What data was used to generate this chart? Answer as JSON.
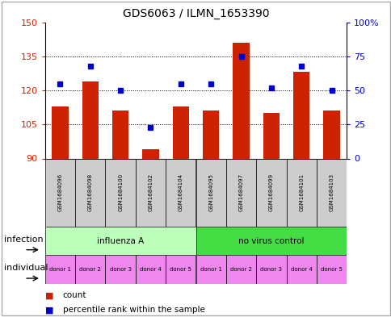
{
  "title": "GDS6063 / ILMN_1653390",
  "samples": [
    "GSM1684096",
    "GSM1684098",
    "GSM1684100",
    "GSM1684102",
    "GSM1684104",
    "GSM1684095",
    "GSM1684097",
    "GSM1684099",
    "GSM1684101",
    "GSM1684103"
  ],
  "counts": [
    113,
    124,
    111,
    94,
    113,
    111,
    141,
    110,
    128,
    111
  ],
  "percentiles": [
    55,
    68,
    50,
    23,
    55,
    55,
    75,
    52,
    68,
    50
  ],
  "ylim_left": [
    90,
    150
  ],
  "ylim_right": [
    0,
    100
  ],
  "yticks_left": [
    90,
    105,
    120,
    135,
    150
  ],
  "yticks_right": [
    0,
    25,
    50,
    75,
    100
  ],
  "bar_color": "#cc2200",
  "dot_color": "#0000cc",
  "infection_groups": [
    {
      "label": "influenza A",
      "color": "#bbffbb",
      "span": [
        0,
        5
      ]
    },
    {
      "label": "no virus control",
      "color": "#44dd44",
      "span": [
        5,
        10
      ]
    }
  ],
  "individual_labels": [
    "donor 1",
    "donor 2",
    "donor 3",
    "donor 4",
    "donor 5",
    "donor 1",
    "donor 2",
    "donor 3",
    "donor 4",
    "donor 5"
  ],
  "individual_color": "#ee88ee",
  "sample_bg_color": "#cccccc",
  "infection_row_label": "infection",
  "individual_row_label": "individual",
  "legend_count_label": "count",
  "legend_pct_label": "percentile rank within the sample",
  "border_color": "#aaaaaa"
}
